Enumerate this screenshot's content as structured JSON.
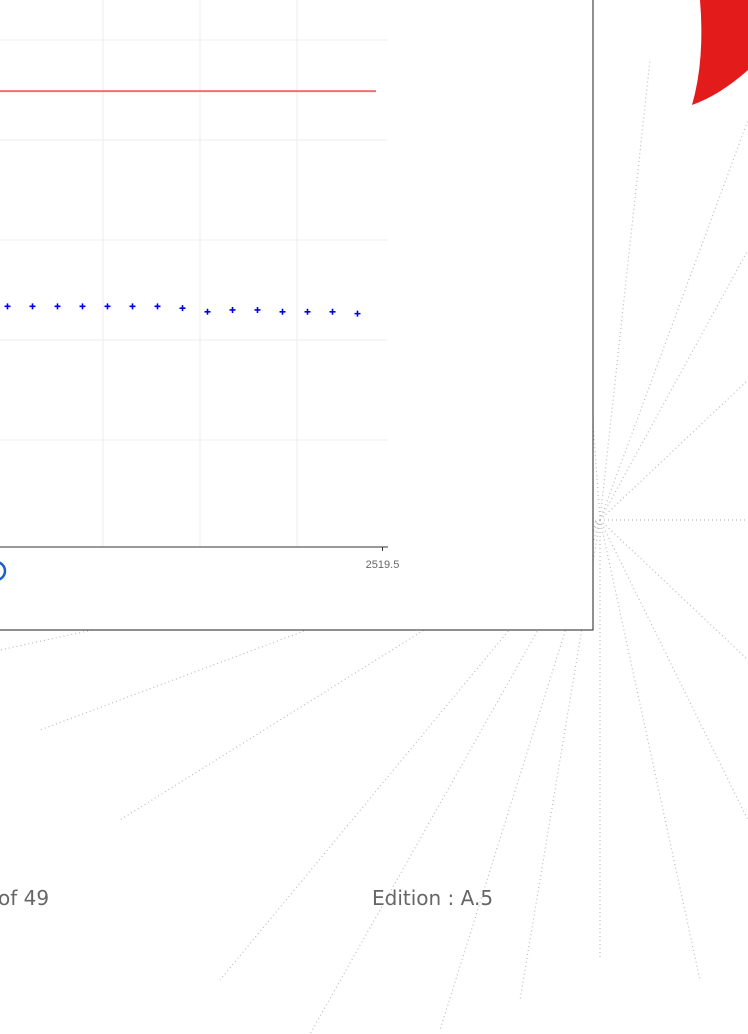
{
  "chart_data": {
    "type": "scatter",
    "xlim": [
      2504.2,
      2520.2
    ],
    "xticks": [
      2519.5
    ],
    "ylim": [
      0,
      30
    ],
    "reference_line": {
      "value": 25,
      "color": "#f07070"
    },
    "series": [
      {
        "color": "#0000ee",
        "x": [
          2504.5,
          2505.5,
          2506.5,
          2507.5,
          2508.5,
          2509.5,
          2510.5,
          2511.5,
          2512.5,
          2513.5,
          2514.5,
          2515.5,
          2516.5,
          2517.5,
          2518.5
        ],
        "values": [
          13.2,
          13.2,
          13.2,
          13.2,
          13.2,
          13.2,
          13.2,
          13.1,
          12.9,
          13.0,
          13.0,
          12.9,
          12.9,
          12.9,
          12.8
        ]
      }
    ]
  },
  "footer": {
    "page": "of 49",
    "edition": "Edition : A.5"
  }
}
